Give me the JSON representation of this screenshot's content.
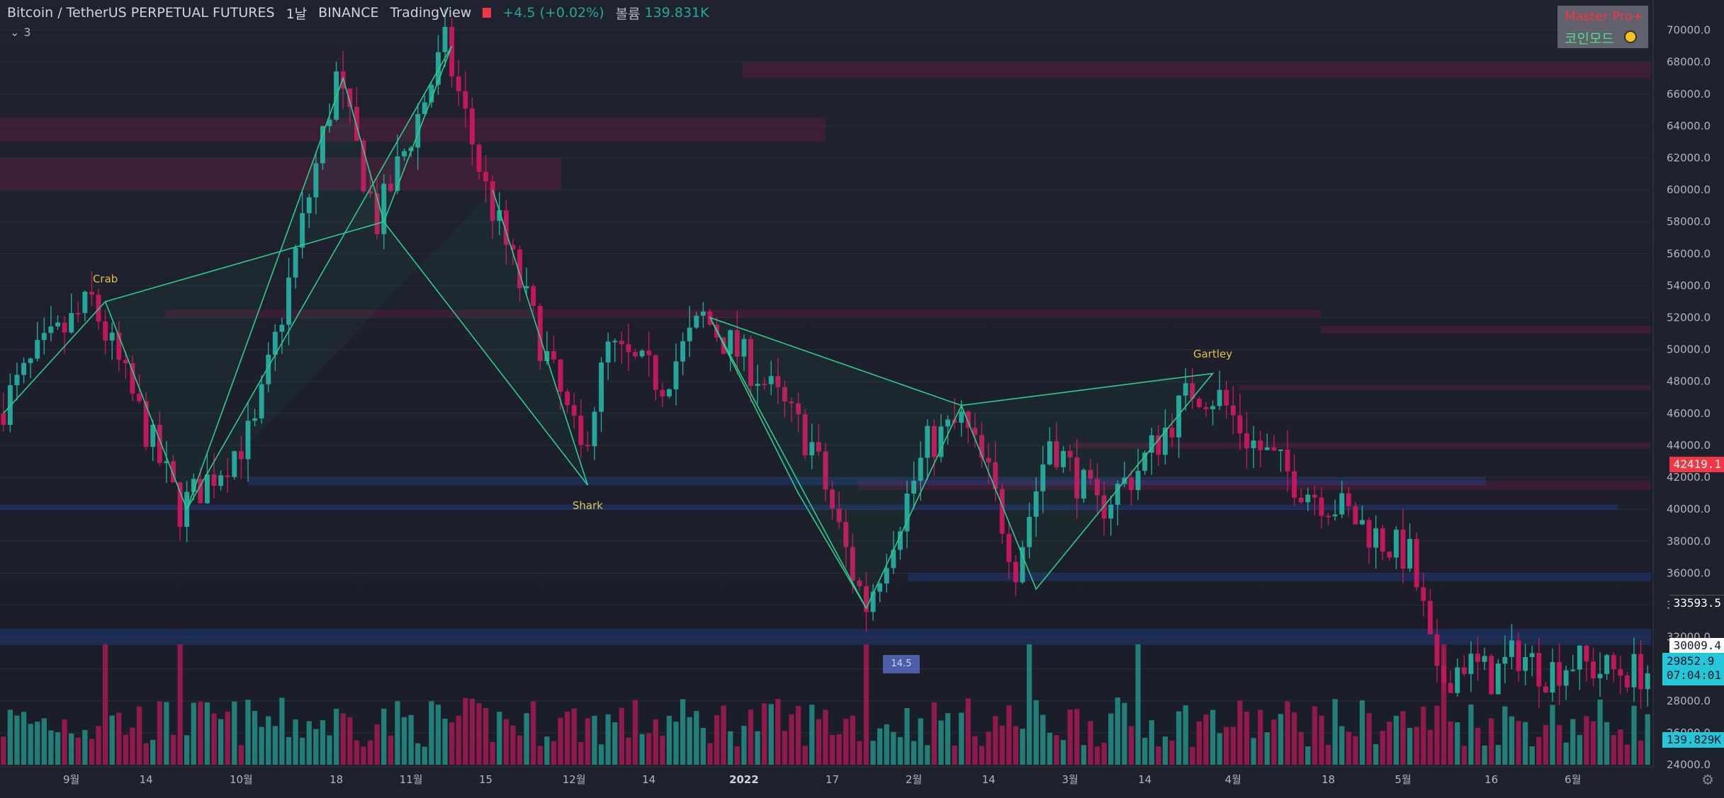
{
  "header": {
    "symbol": "Bitcoin / TetherUS PERPETUAL FUTURES",
    "interval": "1날",
    "exchange": "BINANCE",
    "source": "TradingView",
    "change": "+4.5 (+0.02%)",
    "volume_label": "볼륨",
    "volume_value": "139.831K"
  },
  "indicators_toggle": "3",
  "mode_box": {
    "line1": "Master Pro+",
    "line2": "코인모드"
  },
  "price_tags": {
    "last_high": "42419.1",
    "level_a": "33593.5",
    "level_b": "30009.4",
    "current_price": "29852.9",
    "countdown": "07:04:01",
    "volume": "139.829K"
  },
  "pct_badge": "14.5",
  "chart_data": {
    "type": "candlestick",
    "y_axis": {
      "range": [
        24000,
        71000
      ],
      "ticks": [
        24000,
        26000,
        28000,
        30000,
        32000,
        34000,
        36000,
        38000,
        40000,
        42000,
        44000,
        46000,
        48000,
        50000,
        52000,
        54000,
        56000,
        58000,
        60000,
        62000,
        64000,
        66000,
        68000,
        70000
      ],
      "tick_labels": [
        "24000.0",
        "26000.0",
        "28000.0",
        "30000.0",
        "32000.0",
        "34000.0",
        "36000.0",
        "38000.0",
        "40000.0",
        "42000.0",
        "44000.0",
        "46000.0",
        "48000.0",
        "50000.0",
        "52000.0",
        "54000.0",
        "56000.0",
        "58000.0",
        "60000.0",
        "62000.0",
        "64000.0",
        "66000.0",
        "68000.0",
        "70000.0"
      ]
    },
    "x_axis": {
      "tick_labels": [
        "9월",
        "14",
        "10월",
        "18",
        "11월",
        "15",
        "12월",
        "14",
        "2022",
        "17",
        "2월",
        "14",
        "3월",
        "14",
        "4월",
        "18",
        "5월",
        "16",
        "6월"
      ],
      "tick_index": [
        10,
        21,
        35,
        49,
        60,
        71,
        84,
        95,
        109,
        122,
        134,
        145,
        157,
        168,
        181,
        195,
        206,
        219,
        231
      ]
    },
    "colors": {
      "up": "#26a69a",
      "down": "#c2185b",
      "pattern": "#2ecc8a",
      "label": "#e0c04a"
    },
    "path_points": [
      [
        0,
        46000
      ],
      [
        6,
        49500
      ],
      [
        14,
        53000
      ],
      [
        27,
        40000
      ],
      [
        38,
        45000
      ],
      [
        50,
        67000
      ],
      [
        56,
        58000
      ],
      [
        66,
        69000
      ],
      [
        72,
        60000
      ],
      [
        86,
        43500
      ],
      [
        90,
        50000
      ],
      [
        98,
        48000
      ],
      [
        104,
        52000
      ],
      [
        112,
        48500
      ],
      [
        120,
        44000
      ],
      [
        126,
        36000
      ],
      [
        128,
        34000
      ],
      [
        132,
        38500
      ],
      [
        137,
        44000
      ],
      [
        142,
        45500
      ],
      [
        146,
        42000
      ],
      [
        150,
        36500
      ],
      [
        155,
        44500
      ],
      [
        162,
        40000
      ],
      [
        168,
        42500
      ],
      [
        176,
        47500
      ],
      [
        180,
        47000
      ],
      [
        184,
        44500
      ],
      [
        192,
        41500
      ],
      [
        198,
        40000
      ],
      [
        204,
        38000
      ],
      [
        208,
        37000
      ],
      [
        210,
        33500
      ],
      [
        212,
        29000
      ],
      [
        216,
        30500
      ],
      [
        220,
        29500
      ],
      [
        224,
        31000
      ],
      [
        228,
        29800
      ],
      [
        232,
        30500
      ],
      [
        236,
        29900
      ],
      [
        240,
        29850
      ]
    ],
    "patterns": [
      {
        "name": "Crab",
        "label_pos": [
          15,
          54200
        ],
        "points": [
          [
            0,
            46000
          ],
          [
            15,
            53000
          ],
          [
            27,
            40000
          ],
          [
            50,
            67000
          ],
          [
            56,
            58000
          ],
          [
            15,
            53000
          ]
        ]
      },
      {
        "name": "Shark",
        "label_pos": [
          86,
          40000
        ],
        "points": [
          [
            27,
            40000
          ],
          [
            66,
            69000
          ],
          [
            56,
            58000
          ],
          [
            86,
            41500
          ],
          [
            72,
            60000
          ]
        ]
      },
      {
        "name": "Gartley",
        "label_pos": [
          178,
          49500
        ],
        "points": [
          [
            104,
            52000
          ],
          [
            127,
            33800
          ],
          [
            141,
            46500
          ],
          [
            152,
            35000
          ],
          [
            178,
            48500
          ],
          [
            141,
            46500
          ],
          [
            104,
            52000
          ],
          [
            117,
            41000
          ],
          [
            127,
            33800
          ]
        ]
      }
    ],
    "supply_zones": [
      [
        68000,
        67000,
        0.45,
        1.0
      ],
      [
        64500,
        63000,
        0.0,
        0.5
      ],
      [
        62000,
        60000,
        0.0,
        0.34
      ],
      [
        52500,
        52000,
        0.1,
        0.8
      ],
      [
        51500,
        51000,
        0.8,
        1.0
      ],
      [
        47800,
        47500,
        0.75,
        1.0
      ],
      [
        44200,
        43800,
        0.65,
        1.0
      ],
      [
        41800,
        41200,
        0.52,
        1.0
      ]
    ],
    "demand_zones": [
      [
        42000,
        41500,
        0.15,
        0.9
      ],
      [
        40300,
        40000,
        0.0,
        0.98
      ],
      [
        36000,
        35500,
        0.55,
        1.0
      ],
      [
        32500,
        31500,
        0.0,
        1.0
      ]
    ],
    "volume_range": [
      0,
      180
    ]
  }
}
